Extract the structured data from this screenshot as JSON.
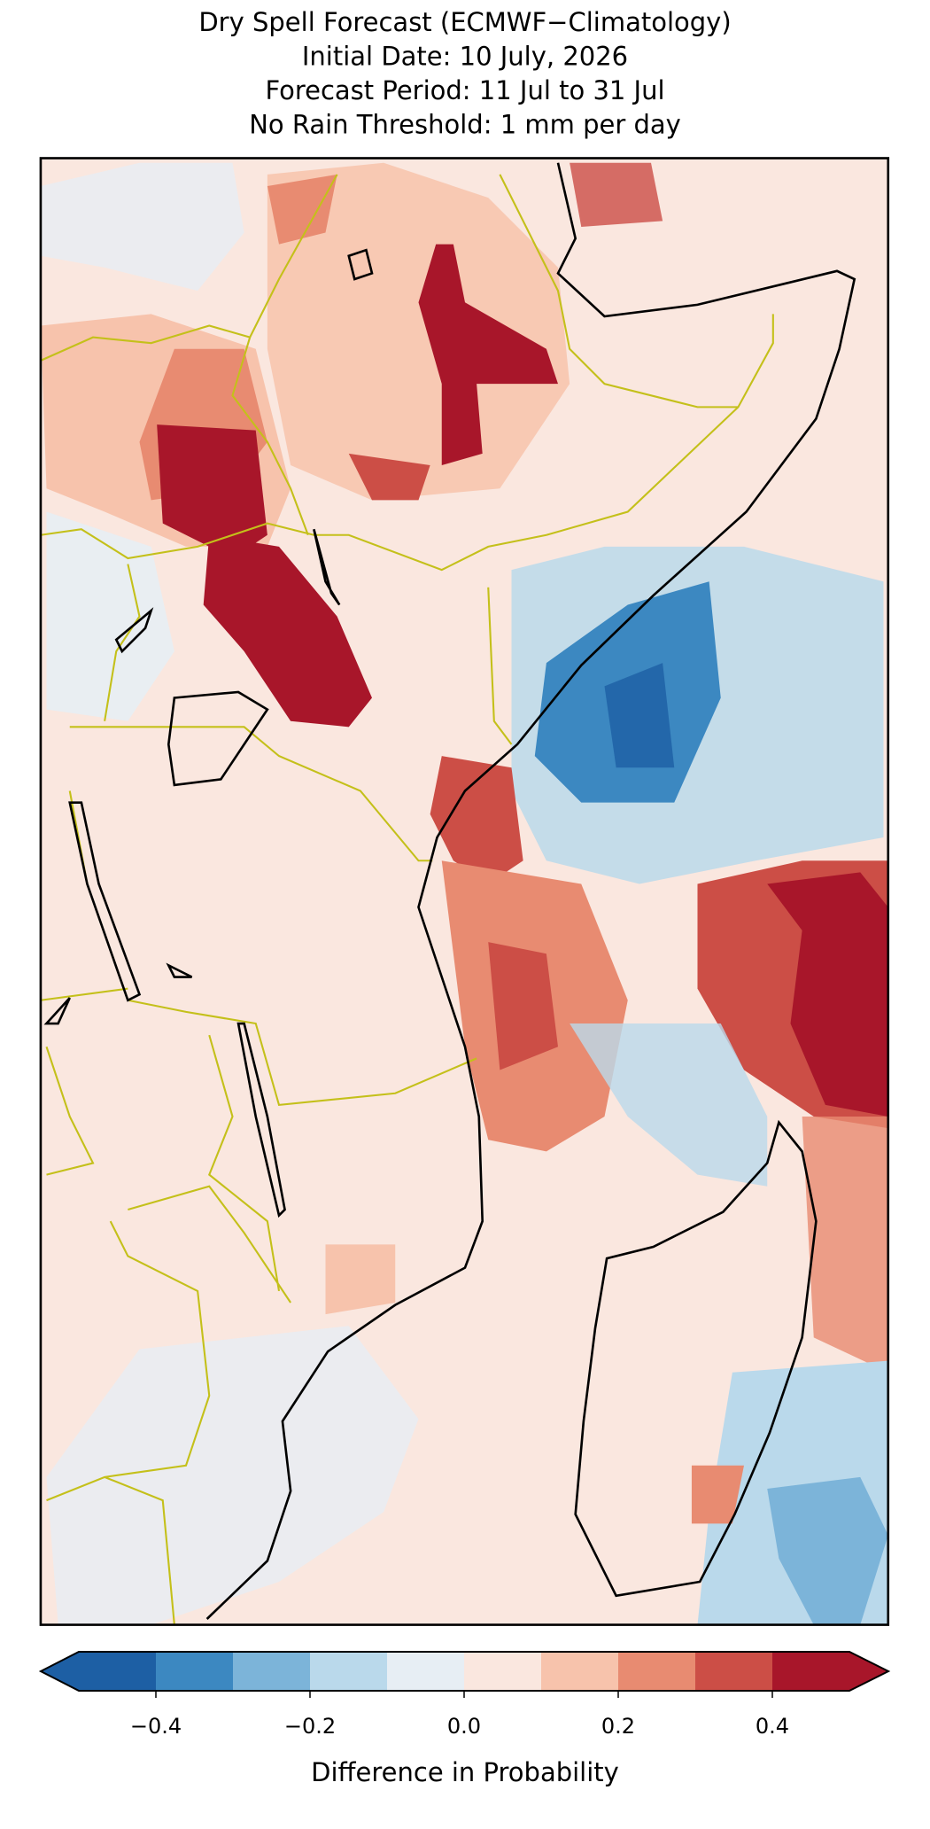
{
  "title_lines": [
    "Dry Spell Forecast (ECMWF−Climatology)",
    "Initial Date: 10 July, 2026",
    "Forecast Period: 11 Jul to 31 Jul",
    "No Rain Threshold: 1 mm per day"
  ],
  "colorbar": {
    "label": "Difference in Probability",
    "levels": [
      -0.5,
      -0.4,
      -0.3,
      -0.2,
      -0.1,
      0,
      0.1,
      0.2,
      0.3,
      0.4,
      0.5
    ],
    "colors": [
      "#1d5fa4",
      "#3c88c1",
      "#7cb4d9",
      "#bad9eb",
      "#e7eef4",
      "#fae7df",
      "#f7c3ac",
      "#e88b71",
      "#cc4e46",
      "#a8162a"
    ],
    "under_color": "#1d5fa4",
    "over_color": "#a8162a",
    "ticks": [
      {
        "value": -0.4,
        "label": "−0.4"
      },
      {
        "value": -0.2,
        "label": "−0.2"
      },
      {
        "value": 0,
        "label": "0.0"
      },
      0.2,
      0.4
    ]
  }
}
